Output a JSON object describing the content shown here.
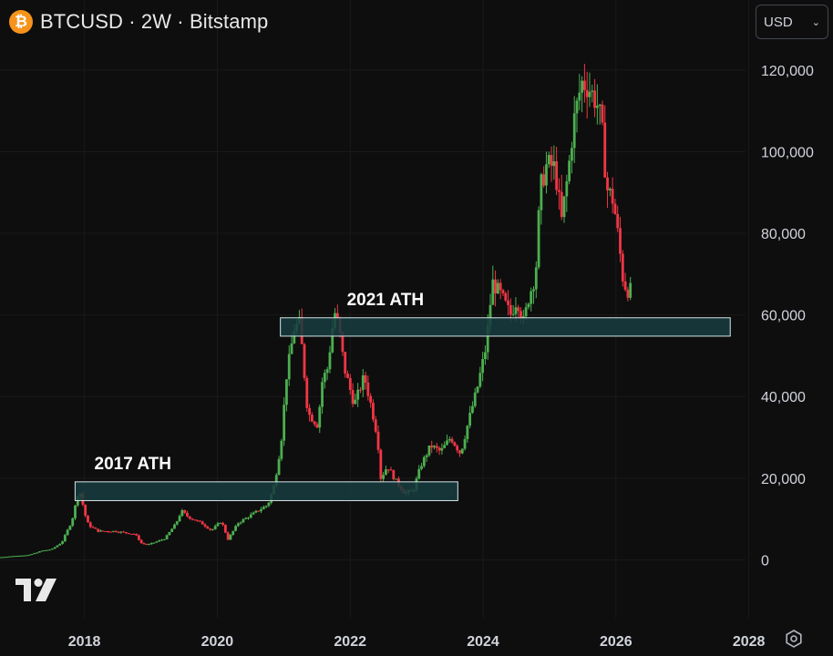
{
  "header": {
    "coin_symbol": "₿",
    "title": "BTCUSD · 2W · Bitstamp"
  },
  "currency_select": {
    "value": "USD",
    "chevron": "chevron-down-icon"
  },
  "icons": {
    "logo": "tradingview-logo-icon",
    "settings": "settings-icon"
  },
  "colors": {
    "background": "#0e0e0e",
    "up": "#4caf50",
    "down": "#f23645",
    "zone_fill": "#163c3f",
    "zone_border": "#d6e6e6",
    "grid": "#1a1a1a",
    "axis_text": "#d1d4dc",
    "coin": "#f7931a"
  },
  "chart_data": {
    "type": "candlestick",
    "symbol": "BTCUSD",
    "interval": "2W",
    "exchange": "Bitstamp",
    "y_ticks": [
      0,
      20000,
      40000,
      60000,
      80000,
      100000,
      120000
    ],
    "y_tick_labels": [
      "0",
      "20,000",
      "40,000",
      "60,000",
      "80,000",
      "100,000",
      "120,000"
    ],
    "x_ticks": [
      2018,
      2020,
      2022,
      2024,
      2026,
      2028
    ],
    "x_tick_labels": [
      "2018",
      "2020",
      "2022",
      "2024",
      "2026",
      "2028"
    ],
    "ylim": [
      -7500,
      126000
    ],
    "xlim": [
      2016.73,
      2027.95
    ],
    "grid": true,
    "zones": [
      {
        "label": "2017 ATH",
        "x_start": 2017.86,
        "x_end": 2023.62,
        "y_low": 14500,
        "y_high": 19100
      },
      {
        "label": "2021 ATH",
        "x_start": 2020.95,
        "x_end": 2027.72,
        "y_low": 54800,
        "y_high": 59300
      }
    ],
    "price_path": [
      [
        2016.75,
        600
      ],
      [
        2017.0,
        950
      ],
      [
        2017.2,
        1150
      ],
      [
        2017.4,
        2200
      ],
      [
        2017.55,
        2600
      ],
      [
        2017.7,
        4300
      ],
      [
        2017.85,
        9500
      ],
      [
        2017.96,
        17500
      ],
      [
        2018.05,
        11000
      ],
      [
        2018.1,
        8500
      ],
      [
        2018.25,
        7000
      ],
      [
        2018.5,
        7000
      ],
      [
        2018.8,
        6300
      ],
      [
        2018.9,
        4000
      ],
      [
        2019.0,
        3700
      ],
      [
        2019.25,
        5200
      ],
      [
        2019.42,
        9000
      ],
      [
        2019.5,
        12000
      ],
      [
        2019.6,
        10500
      ],
      [
        2019.8,
        9000
      ],
      [
        2019.95,
        7200
      ],
      [
        2020.1,
        9500
      ],
      [
        2020.2,
        5000
      ],
      [
        2020.35,
        9000
      ],
      [
        2020.6,
        11500
      ],
      [
        2020.8,
        13500
      ],
      [
        2020.9,
        18500
      ],
      [
        2021.0,
        29000
      ],
      [
        2021.08,
        45000
      ],
      [
        2021.2,
        57000
      ],
      [
        2021.28,
        58000
      ],
      [
        2021.4,
        36000
      ],
      [
        2021.55,
        33000
      ],
      [
        2021.62,
        44000
      ],
      [
        2021.7,
        47000
      ],
      [
        2021.8,
        61000
      ],
      [
        2021.87,
        57000
      ],
      [
        2021.95,
        47000
      ],
      [
        2022.1,
        38000
      ],
      [
        2022.25,
        45000
      ],
      [
        2022.35,
        38000
      ],
      [
        2022.45,
        30000
      ],
      [
        2022.5,
        20000
      ],
      [
        2022.6,
        23000
      ],
      [
        2022.72,
        19500
      ],
      [
        2022.85,
        16500
      ],
      [
        2022.98,
        16600
      ],
      [
        2023.1,
        23000
      ],
      [
        2023.25,
        28000
      ],
      [
        2023.4,
        26500
      ],
      [
        2023.55,
        30000
      ],
      [
        2023.7,
        26000
      ],
      [
        2023.82,
        34000
      ],
      [
        2023.95,
        42000
      ],
      [
        2024.08,
        52000
      ],
      [
        2024.18,
        68000
      ],
      [
        2024.3,
        65000
      ],
      [
        2024.45,
        60000
      ],
      [
        2024.55,
        64000
      ],
      [
        2024.65,
        58000
      ],
      [
        2024.72,
        64000
      ],
      [
        2024.83,
        70000
      ],
      [
        2024.9,
        91000
      ],
      [
        2025.0,
        97000
      ],
      [
        2025.12,
        96000
      ],
      [
        2025.22,
        83000
      ],
      [
        2025.32,
        95000
      ],
      [
        2025.4,
        107000
      ],
      [
        2025.52,
        117000
      ],
      [
        2025.62,
        116000
      ],
      [
        2025.75,
        112000
      ],
      [
        2025.82,
        107000
      ],
      [
        2025.9,
        91000
      ],
      [
        2026.0,
        88000
      ],
      [
        2026.08,
        78000
      ],
      [
        2026.15,
        68000
      ],
      [
        2026.22,
        66000
      ]
    ]
  }
}
